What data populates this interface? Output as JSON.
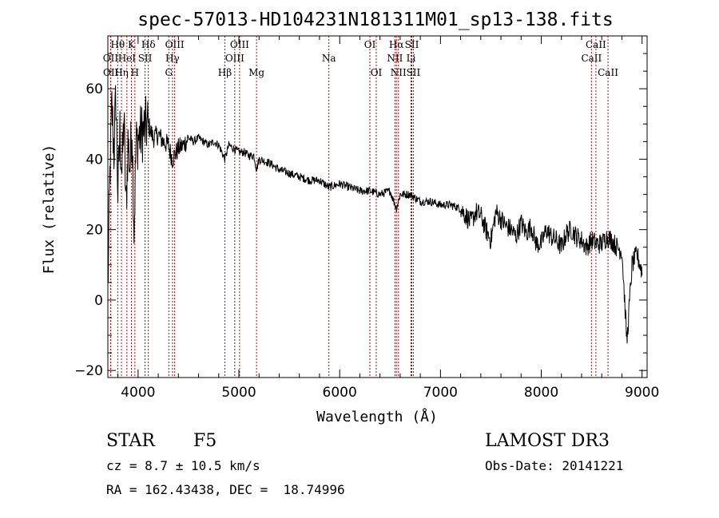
{
  "chart_data": {
    "type": "line",
    "title": "spec-57013-HD104231N181311M01_sp13-138.fits",
    "xlabel": "Wavelength (Å)",
    "ylabel": "Flux (relative)",
    "xlim": [
      3700,
      9050
    ],
    "ylim": [
      -22,
      75
    ],
    "xticks": [
      4000,
      5000,
      6000,
      7000,
      8000,
      9000
    ],
    "xtick_labels": [
      "4000",
      "5000",
      "6000",
      "7000",
      "8000",
      "9000"
    ],
    "yticks": [
      -20,
      0,
      20,
      40,
      60
    ],
    "ytick_labels": [
      "−20",
      "0",
      "20",
      "40",
      "60"
    ],
    "series": [
      {
        "name": "flux",
        "x": [
          3700,
          3720,
          3740,
          3760,
          3780,
          3800,
          3820,
          3840,
          3860,
          3880,
          3900,
          3920,
          3940,
          3960,
          3980,
          4000,
          4050,
          4100,
          4150,
          4200,
          4250,
          4300,
          4340,
          4400,
          4450,
          4500,
          4550,
          4600,
          4650,
          4700,
          4750,
          4800,
          4861,
          4900,
          4950,
          5000,
          5050,
          5100,
          5150,
          5175,
          5200,
          5300,
          5400,
          5500,
          5600,
          5700,
          5800,
          5890,
          6000,
          6100,
          6200,
          6300,
          6400,
          6500,
          6563,
          6600,
          6700,
          6800,
          6900,
          7000,
          7100,
          7200,
          7250,
          7300,
          7350,
          7400,
          7450,
          7500,
          7550,
          7600,
          7650,
          7700,
          7750,
          7800,
          7850,
          7900,
          7950,
          8000,
          8050,
          8100,
          8150,
          8200,
          8250,
          8300,
          8350,
          8400,
          8450,
          8500,
          8550,
          8600,
          8650,
          8700,
          8750,
          8800,
          8850,
          8900,
          8950,
          9000
        ],
        "values": [
          2,
          35,
          55,
          42,
          58,
          30,
          48,
          36,
          52,
          25,
          45,
          38,
          50,
          20,
          44,
          46,
          48,
          50,
          46,
          47,
          45,
          44,
          40,
          43,
          44,
          46,
          45,
          46,
          45,
          44,
          45,
          44,
          40,
          44,
          43,
          42,
          42,
          41,
          41,
          37,
          40,
          39,
          37,
          36,
          35,
          34,
          34,
          32,
          33,
          32,
          31,
          31,
          30,
          31,
          26,
          30,
          30,
          28,
          28,
          27,
          27,
          26,
          24,
          22,
          25,
          24,
          20,
          17,
          25,
          23,
          21,
          20,
          18,
          22,
          19,
          21,
          16,
          16,
          20,
          18,
          17,
          15,
          19,
          20,
          18,
          17,
          15,
          17,
          16,
          16,
          18,
          17,
          15,
          14,
          -12,
          10,
          13,
          8
        ]
      }
    ],
    "line_labels": [
      {
        "label": "Hθ",
        "wavelength": 3798,
        "row": 0
      },
      {
        "label": "OII",
        "wavelength": 3727,
        "row": 1
      },
      {
        "label": "OII",
        "wavelength": 3729,
        "row": 2
      },
      {
        "label": "K",
        "wavelength": 3934,
        "row": 0
      },
      {
        "label": "HeI",
        "wavelength": 3889,
        "row": 1
      },
      {
        "label": "Hη",
        "wavelength": 3835,
        "row": 2
      },
      {
        "label": "SII",
        "wavelength": 4069,
        "row": 1
      },
      {
        "label": "H",
        "wavelength": 3968,
        "row": 2
      },
      {
        "label": "Hδ",
        "wavelength": 4102,
        "row": 0
      },
      {
        "label": "OIII",
        "wavelength": 4363,
        "row": 0
      },
      {
        "label": "Hγ",
        "wavelength": 4341,
        "row": 1
      },
      {
        "label": "G",
        "wavelength": 4305,
        "row": 2
      },
      {
        "label": "Hβ",
        "wavelength": 4861,
        "row": 2
      },
      {
        "label": "OIII",
        "wavelength": 5007,
        "row": 0
      },
      {
        "label": "OIII",
        "wavelength": 4959,
        "row": 1
      },
      {
        "label": "Mg",
        "wavelength": 5175,
        "row": 2
      },
      {
        "label": "Na",
        "wavelength": 5893,
        "row": 1
      },
      {
        "label": "OI",
        "wavelength": 6300,
        "row": 0
      },
      {
        "label": "OI",
        "wavelength": 6363,
        "row": 2
      },
      {
        "label": "Hα",
        "wavelength": 6563,
        "row": 0
      },
      {
        "label": "NII",
        "wavelength": 6548,
        "row": 1
      },
      {
        "label": "NII",
        "wavelength": 6583,
        "row": 2
      },
      {
        "label": "SII",
        "wavelength": 6716,
        "row": 0
      },
      {
        "label": "Li",
        "wavelength": 6708,
        "row": 1
      },
      {
        "label": "SII",
        "wavelength": 6731,
        "row": 2
      },
      {
        "label": "CaII",
        "wavelength": 8542,
        "row": 0
      },
      {
        "label": "CaII",
        "wavelength": 8498,
        "row": 1
      },
      {
        "label": "CaII",
        "wavelength": 8662,
        "row": 2
      }
    ],
    "grid": false
  },
  "info": {
    "object_class": "STAR",
    "subclass": "F5",
    "cz": "cz = 8.7 ± 10.5 km/s",
    "coords": "RA = 162.43438, DEC =  18.74996",
    "survey": "LAMOST DR3",
    "obs_date": "Obs-Date: 20141221"
  },
  "colors": {
    "line": "#000000",
    "marker_line": "#cc0000",
    "background": "#ffffff"
  }
}
